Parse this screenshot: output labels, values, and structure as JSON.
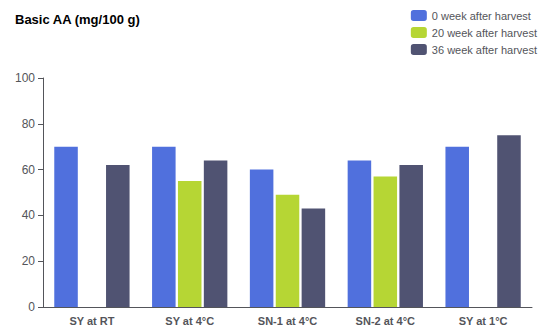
{
  "chart_data": {
    "type": "bar",
    "annotation": "Basic AA (mg/100 g)",
    "categories": [
      "SY at RT",
      "SY at 4°C",
      "SN-1 at 4°C",
      "SN-2 at 4°C",
      "SY at 1°C"
    ],
    "series": [
      {
        "name": "0 week after harvest",
        "values": [
          70,
          70,
          60,
          64,
          70
        ]
      },
      {
        "name": "20 week after harvest",
        "values": [
          null,
          55,
          49,
          57,
          null
        ]
      },
      {
        "name": "36 week after harvest",
        "values": [
          62,
          64,
          43,
          62,
          75
        ]
      }
    ],
    "ylim": [
      0,
      100
    ],
    "yticks": [
      0,
      20,
      40,
      60,
      80,
      100
    ],
    "grid": false,
    "legend": "upper right"
  }
}
